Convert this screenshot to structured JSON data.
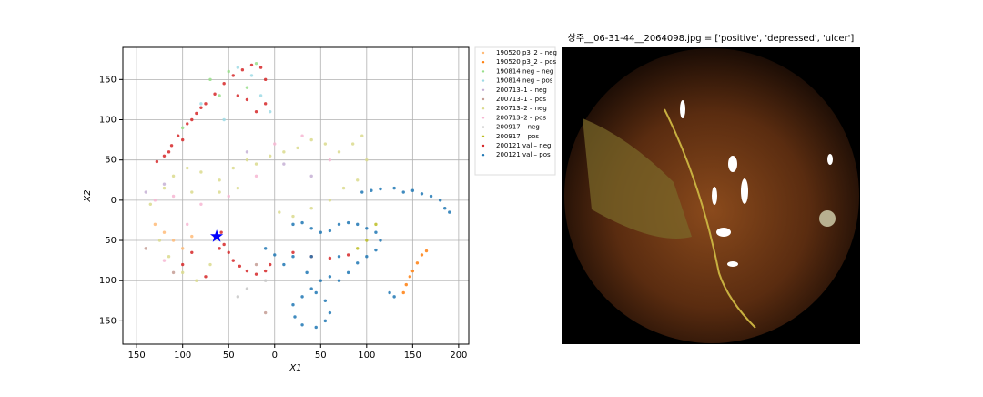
{
  "chart_data": {
    "type": "scatter",
    "xlabel": "X1",
    "ylabel": "X2",
    "xlim": [
      -165,
      211
    ],
    "ylim": [
      -179,
      190
    ],
    "xticks": [
      {
        "value": -150,
        "label": "150"
      },
      {
        "value": -100,
        "label": "100"
      },
      {
        "value": -50,
        "label": "50"
      },
      0,
      50,
      100,
      150,
      200
    ],
    "yticks": [
      {
        "value": -150,
        "label": "150"
      },
      {
        "value": -100,
        "label": "100"
      },
      {
        "value": -50,
        "label": "50"
      },
      0,
      50,
      100,
      150
    ],
    "grid": true,
    "series": [
      {
        "name": "190520 p3_2 – neg",
        "color": "#ffbb78",
        "x": [
          -120,
          -110,
          -100,
          -130,
          -90
        ],
        "values": [
          -40,
          -50,
          -60,
          -30,
          -45
        ]
      },
      {
        "name": "190520 p3_2 – pos",
        "color": "#ff7f0e",
        "x": [
          140,
          143,
          147,
          150,
          155,
          160,
          165
        ],
        "values": [
          -115,
          -105,
          -95,
          -88,
          -78,
          -68,
          -63
        ]
      },
      {
        "name": "190814 neg – neg",
        "color": "#98df8a",
        "x": [
          -70,
          -50,
          -30,
          -60,
          -20,
          -100
        ],
        "values": [
          150,
          160,
          140,
          130,
          170,
          90
        ]
      },
      {
        "name": "190814 neg – pos",
        "color": "#9edae5",
        "x": [
          -40,
          -25,
          -15,
          -5,
          -80,
          -55
        ],
        "values": [
          165,
          155,
          130,
          110,
          120,
          100
        ]
      },
      {
        "name": "200713–1 – neg",
        "color": "#c5b0d5",
        "x": [
          -140,
          -120,
          -30,
          10,
          40
        ],
        "values": [
          10,
          20,
          60,
          45,
          30
        ]
      },
      {
        "name": "200713–1 – pos",
        "color": "#c49c94",
        "x": [
          -20,
          -110,
          -140,
          -10
        ],
        "values": [
          -80,
          -90,
          -60,
          -140
        ]
      },
      {
        "name": "200713–2 – neg",
        "color": "#dbdb8d",
        "x": [
          -135,
          -120,
          -110,
          -95,
          -80,
          -60,
          -45,
          -30,
          -20,
          -5,
          10,
          25,
          40,
          55,
          70,
          85,
          95,
          100,
          90,
          75,
          60,
          40,
          20,
          5,
          -125,
          -115,
          -100,
          -85,
          -70,
          -60,
          -40,
          -90
        ],
        "values": [
          -5,
          15,
          30,
          40,
          35,
          25,
          40,
          50,
          45,
          55,
          60,
          65,
          75,
          70,
          60,
          70,
          80,
          50,
          25,
          15,
          0,
          -10,
          -20,
          -15,
          -50,
          -70,
          -90,
          -100,
          -80,
          10,
          15,
          10
        ]
      },
      {
        "name": "200713–2 – pos",
        "color": "#f7b6d2",
        "x": [
          -130,
          -110,
          -80,
          -50,
          -20,
          0,
          30,
          60,
          -95,
          -120
        ],
        "values": [
          0,
          5,
          -5,
          5,
          30,
          70,
          80,
          50,
          -30,
          -75
        ]
      },
      {
        "name": "200917 – neg",
        "color": "#c7c7c7",
        "x": [
          -40,
          -10,
          -30
        ],
        "values": [
          -120,
          -100,
          -110
        ]
      },
      {
        "name": "200917 – pos",
        "color": "#bcbd22",
        "x": [
          100,
          110,
          90
        ],
        "values": [
          -50,
          -30,
          -60
        ]
      },
      {
        "name": "200121 val – neg",
        "color": "#d62728",
        "x": [
          -128,
          -120,
          -112,
          -105,
          -95,
          -85,
          -75,
          -65,
          -55,
          -45,
          -35,
          -25,
          -15,
          -10,
          -115,
          -100,
          -90,
          -80,
          -30,
          -20,
          -10,
          -40,
          -65,
          -58,
          -55,
          -50,
          -45,
          -38,
          -30,
          -20,
          -10,
          -5,
          -60,
          -75,
          -90,
          -100,
          20,
          40,
          60,
          80
        ],
        "values": [
          48,
          55,
          68,
          80,
          95,
          108,
          120,
          132,
          145,
          155,
          162,
          168,
          165,
          150,
          60,
          75,
          100,
          115,
          125,
          110,
          120,
          130,
          -45,
          -40,
          -55,
          -65,
          -75,
          -82,
          -88,
          -92,
          -88,
          -80,
          -60,
          -95,
          -65,
          -80,
          -65,
          -70,
          -72,
          -68
        ]
      },
      {
        "name": "200121 val – pos",
        "color": "#1f77b4",
        "x": [
          95,
          105,
          115,
          130,
          140,
          150,
          160,
          170,
          180,
          185,
          190,
          20,
          30,
          40,
          50,
          60,
          70,
          80,
          90,
          100,
          110,
          115,
          110,
          100,
          90,
          80,
          70,
          60,
          50,
          40,
          30,
          20,
          22,
          30,
          45,
          55,
          60,
          55,
          45,
          35,
          20,
          0,
          -10,
          10,
          40,
          70,
          125,
          130
        ],
        "values": [
          10,
          12,
          14,
          15,
          10,
          12,
          8,
          5,
          0,
          -10,
          -15,
          -30,
          -28,
          -35,
          -40,
          -38,
          -30,
          -28,
          -30,
          -35,
          -40,
          -50,
          -62,
          -70,
          -78,
          -90,
          -100,
          -95,
          -100,
          -110,
          -120,
          -130,
          -145,
          -155,
          -158,
          -150,
          -140,
          -125,
          -115,
          -90,
          -70,
          -68,
          -60,
          -80,
          -70,
          -70,
          -115,
          -120
        ]
      }
    ],
    "highlight": {
      "x": -63,
      "y": -45,
      "color": "#0000ff"
    }
  },
  "image": {
    "title": "상주__06-31-44__2064098.jpg = ['positive', 'depressed', 'ulcer']"
  }
}
